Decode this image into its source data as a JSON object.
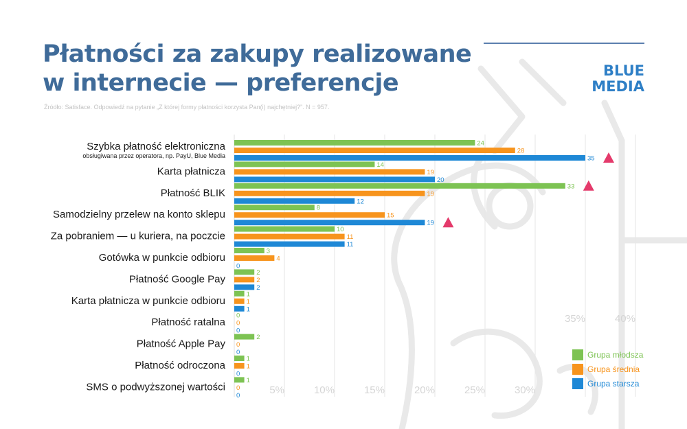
{
  "header": {
    "title_line1": "Płatności za zakupy realizowane",
    "title_line2": "w internecie — preferencje",
    "source": "Źródło: Satisface. Odpowiedź na pytanie „Z której formy płatności korzysta Pan(i) najchętniej?”. N = 957.",
    "brand_line1": "BLUE",
    "brand_line2": "MEDIA"
  },
  "chart_data": {
    "type": "bar",
    "orientation": "horizontal",
    "categories": [
      "Szybka płatność elektroniczna",
      "Karta płatnicza",
      "Płatność BLIK",
      "Samodzielny przelew na konto sklepu",
      "Za pobraniem — u kuriera, na poczcie",
      "Gotówka w punkcie odbioru",
      "Płatność Google Pay",
      "Karta płatnicza w punkcie odbioru",
      "Płatność ratalna",
      "Płatność Apple Pay",
      "Płatność odroczona",
      "SMS o podwyższonej wartości"
    ],
    "category_sublabels": [
      "obsługiwana przez operatora, np. PayU, Blue Media",
      "",
      "",
      "",
      "",
      "",
      "",
      "",
      "",
      "",
      "",
      ""
    ],
    "series": [
      {
        "name": "Grupa młodsza",
        "color": "#7dc353",
        "values": [
          24,
          14,
          33,
          8,
          10,
          3,
          2,
          1,
          0,
          2,
          1,
          1
        ]
      },
      {
        "name": "Grupa średnia",
        "color": "#f7941d",
        "values": [
          28,
          19,
          19,
          15,
          11,
          4,
          2,
          1,
          0,
          0,
          1,
          0
        ]
      },
      {
        "name": "Grupa starsza",
        "color": "#1e88d6",
        "values": [
          35,
          20,
          12,
          19,
          11,
          0,
          2,
          1,
          0,
          0,
          0,
          0
        ]
      }
    ],
    "highlights": [
      {
        "category": "Szybka płatność elektroniczna",
        "series": "Grupa starsza"
      },
      {
        "category": "Płatność BLIK",
        "series": "Grupa młodsza"
      },
      {
        "category": "Samodzielny przelew na konto sklepu",
        "series": "Grupa starsza"
      }
    ],
    "highlight_color": "#e43a6b",
    "x_ticks": [
      "5%",
      "10%",
      "15%",
      "20%",
      "25%",
      "30%",
      "35%",
      "40%"
    ],
    "xlim": [
      0,
      40
    ],
    "grid": true,
    "legend_position": "bottom-right"
  }
}
